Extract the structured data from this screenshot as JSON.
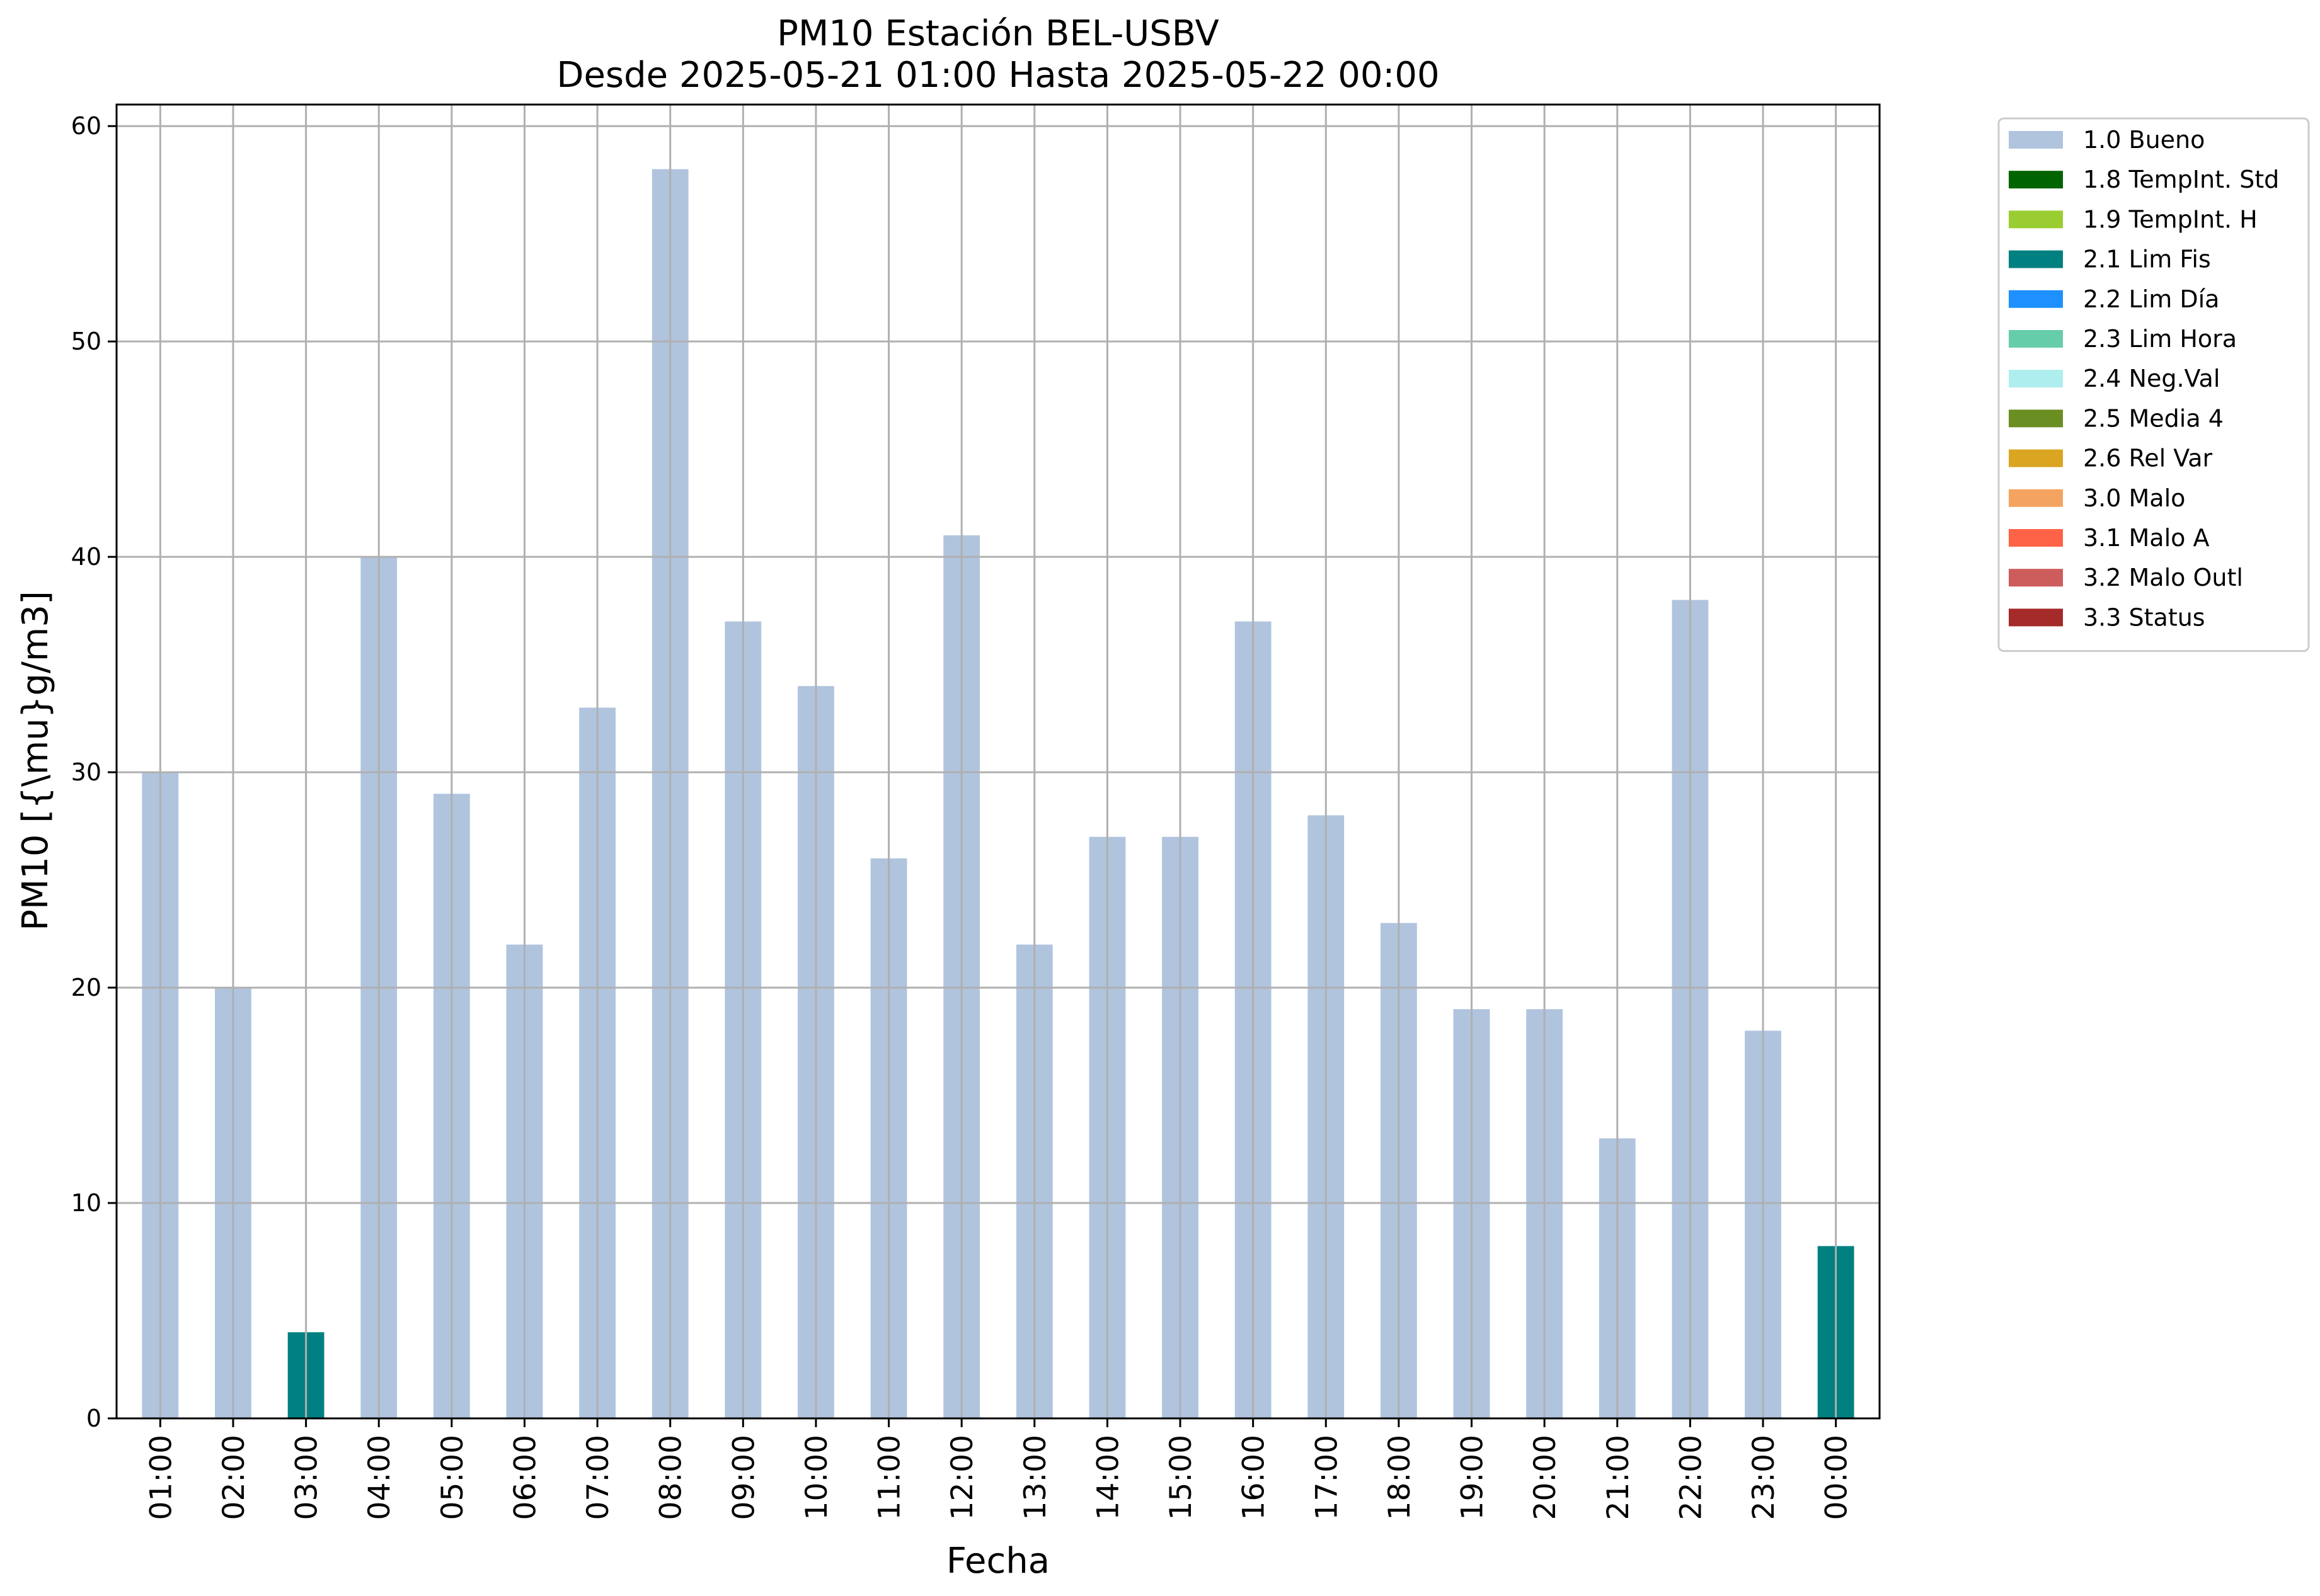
{
  "chart_data": {
    "type": "bar",
    "title": "PM10 Estación BEL-USBV",
    "subtitle": "Desde 2025-05-21 01:00 Hasta 2025-05-22 00:00",
    "xlabel": "Fecha",
    "ylabel": "PM10 [{\\mu}g/m3]",
    "ylim": [
      0,
      61
    ],
    "yticks": [
      0,
      10,
      20,
      30,
      40,
      50,
      60
    ],
    "grid": true,
    "legend_position": "outside right, top",
    "categories": [
      "01:00",
      "02:00",
      "03:00",
      "04:00",
      "05:00",
      "06:00",
      "07:00",
      "08:00",
      "09:00",
      "10:00",
      "11:00",
      "12:00",
      "13:00",
      "14:00",
      "15:00",
      "16:00",
      "17:00",
      "18:00",
      "19:00",
      "20:00",
      "21:00",
      "22:00",
      "23:00",
      "00:00"
    ],
    "values": [
      30,
      20,
      4,
      40,
      29,
      22,
      33,
      58,
      37,
      34,
      26,
      41,
      22,
      27,
      27,
      37,
      28,
      23,
      19,
      19,
      13,
      38,
      18,
      8
    ],
    "flags": [
      "1.0 Bueno",
      "1.0 Bueno",
      "2.1 Lim Fis",
      "1.0 Bueno",
      "1.0 Bueno",
      "1.0 Bueno",
      "1.0 Bueno",
      "1.0 Bueno",
      "1.0 Bueno",
      "1.0 Bueno",
      "1.0 Bueno",
      "1.0 Bueno",
      "1.0 Bueno",
      "1.0 Bueno",
      "1.0 Bueno",
      "1.0 Bueno",
      "1.0 Bueno",
      "1.0 Bueno",
      "1.0 Bueno",
      "1.0 Bueno",
      "1.0 Bueno",
      "1.0 Bueno",
      "1.0 Bueno",
      "2.1 Lim Fis"
    ],
    "legend": [
      {
        "name": "1.0 Bueno",
        "color": "#B0C4DE"
      },
      {
        "name": "1.8 TempInt. Std",
        "color": "#006400"
      },
      {
        "name": "1.9 TempInt. H",
        "color": "#9ACD32"
      },
      {
        "name": "2.1 Lim Fis",
        "color": "#008080"
      },
      {
        "name": "2.2 Lim Día",
        "color": "#1E90FF"
      },
      {
        "name": "2.3 Lim Hora",
        "color": "#66CDAA"
      },
      {
        "name": "2.4 Neg.Val",
        "color": "#AFEEEE"
      },
      {
        "name": "2.5 Media 4",
        "color": "#6B8E23"
      },
      {
        "name": "2.6 Rel Var",
        "color": "#DAA520"
      },
      {
        "name": "3.0 Malo",
        "color": "#F4A460"
      },
      {
        "name": "3.1 Malo A",
        "color": "#FF6347"
      },
      {
        "name": "3.2 Malo Outl",
        "color": "#CD5C5C"
      },
      {
        "name": "3.3 Status",
        "color": "#A52A2A"
      }
    ]
  },
  "colors": {
    "grid": "#b0b0b0",
    "axis": "#000000"
  }
}
